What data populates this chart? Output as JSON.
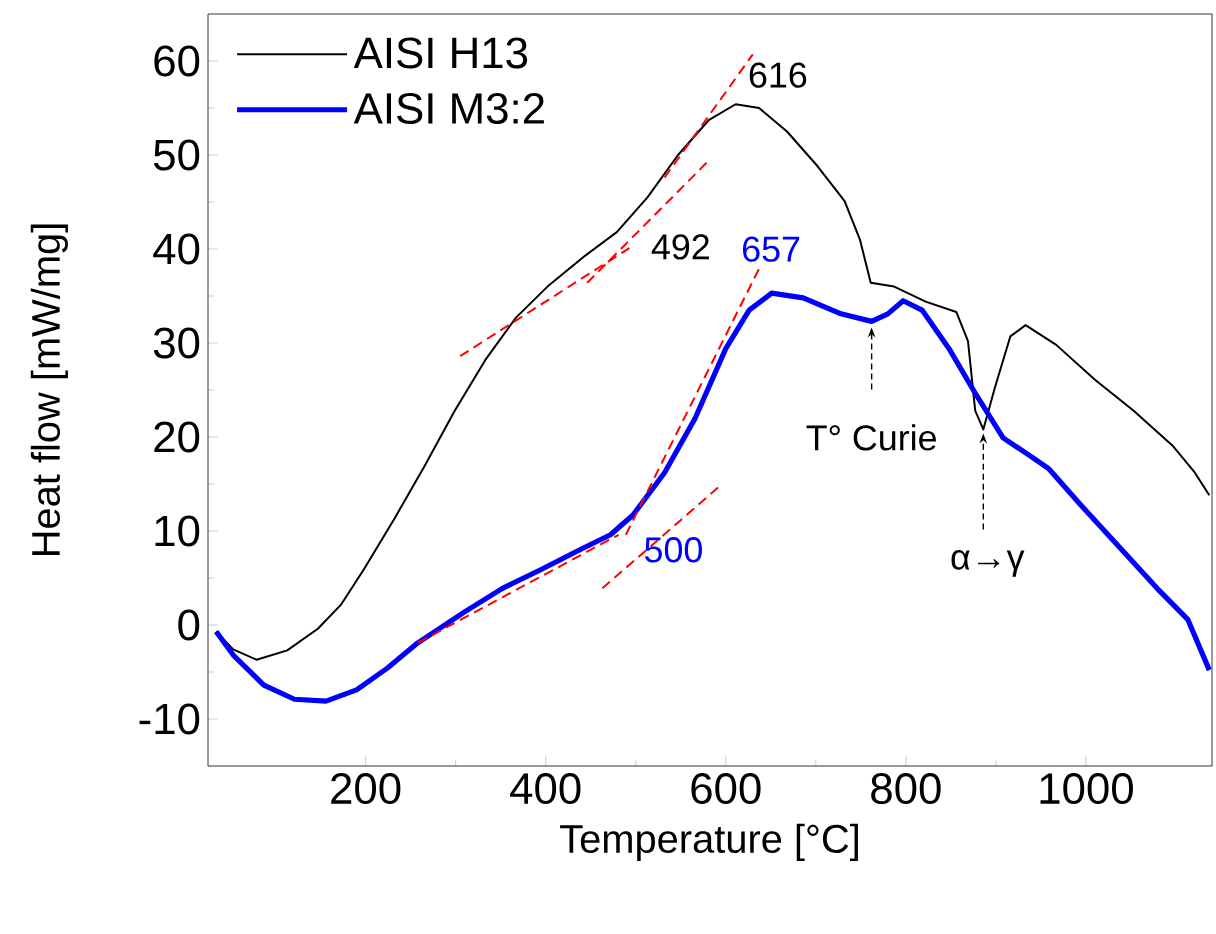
{
  "chart_data": {
    "type": "line",
    "xlabel": "Temperature [°C]",
    "ylabel": "Heat flow [mW/mg]",
    "xlim": [
      25,
      1140
    ],
    "ylim": [
      -15,
      65
    ],
    "xticks": [
      200,
      400,
      600,
      800,
      1000
    ],
    "yticks": [
      -10,
      0,
      10,
      20,
      30,
      40,
      50,
      60
    ],
    "legend": "top left",
    "marker": "none",
    "line_style": "solid",
    "grid": false,
    "series": [
      {
        "name": "AISI H13",
        "color": "#000000",
        "x": [
          34,
          53,
          79,
          113,
          147,
          173,
          198,
          232,
          266,
          299,
          333,
          367,
          402,
          444,
          479,
          513,
          547,
          581,
          611,
          637,
          668,
          702,
          732,
          749,
          761,
          787,
          822,
          856,
          869,
          877,
          886,
          899,
          916,
          933,
          967,
          1010,
          1053,
          1096,
          1121,
          1137
        ],
        "values": [
          -0.7,
          -2.6,
          -3.7,
          -2.7,
          -0.4,
          2.2,
          5.9,
          11.3,
          17.0,
          22.8,
          28.2,
          32.7,
          36.0,
          39.3,
          41.8,
          45.5,
          50.0,
          53.7,
          55.4,
          55.0,
          52.5,
          48.8,
          45.1,
          41.0,
          36.4,
          36.0,
          34.4,
          33.3,
          30.2,
          22.8,
          20.8,
          25.3,
          30.7,
          31.9,
          29.8,
          26.1,
          22.8,
          19.1,
          16.2,
          13.8
        ]
      },
      {
        "name": "AISI M3:2",
        "color": "#0000ff",
        "x": [
          34,
          53,
          87,
          121,
          156,
          190,
          224,
          258,
          310,
          352,
          395,
          438,
          472,
          497,
          532,
          566,
          600,
          626,
          651,
          686,
          728,
          762,
          780,
          797,
          818,
          848,
          878,
          908,
          938,
          959,
          993,
          1036,
          1079,
          1113,
          1137
        ],
        "values": [
          -0.7,
          -3.2,
          -6.4,
          -7.9,
          -8.1,
          -6.9,
          -4.6,
          -1.9,
          1.4,
          3.9,
          5.9,
          8.0,
          9.6,
          11.7,
          16.2,
          22.0,
          29.4,
          33.5,
          35.3,
          34.8,
          33.1,
          32.3,
          33.1,
          34.5,
          33.5,
          29.4,
          24.5,
          19.9,
          18.0,
          16.6,
          12.9,
          8.4,
          3.9,
          0.6,
          -4.8
        ]
      },
      {
        "color": "#ff0000",
        "line_style": "dashed",
        "x": [
          305,
          493
        ],
        "values": [
          28.6,
          40.1
        ]
      },
      {
        "color": "#ff0000",
        "line_style": "dashed",
        "x": [
          446,
          579
        ],
        "values": [
          36.4,
          49.2
        ]
      },
      {
        "color": "#ff0000",
        "line_style": "dashed",
        "x": [
          532,
          630
        ],
        "values": [
          47.6,
          60.7
        ]
      },
      {
        "color": "#ff0000",
        "line_style": "dashed",
        "x": [
          258,
          481
        ],
        "values": [
          -1.9,
          9.6
        ]
      },
      {
        "color": "#ff0000",
        "line_style": "dashed",
        "x": [
          463,
          596
        ],
        "values": [
          3.9,
          15.0
        ]
      },
      {
        "color": "#ff0000",
        "line_style": "dashed",
        "x": [
          489,
          638
        ],
        "values": [
          9.6,
          38.1
        ]
      }
    ],
    "annotations": [
      {
        "text": "616",
        "x": 622,
        "y": 58.5
      },
      {
        "text": "492",
        "x": 492,
        "y": 43.2
      },
      {
        "text": "657",
        "x": 657,
        "y": 35.3
      },
      {
        "text": "500",
        "x": 506,
        "y": 8.0
      },
      {
        "text": "T° Curie",
        "x": 762,
        "y": 32.3
      },
      {
        "text": "α→γ",
        "x": 886,
        "y": 20.8
      }
    ]
  }
}
